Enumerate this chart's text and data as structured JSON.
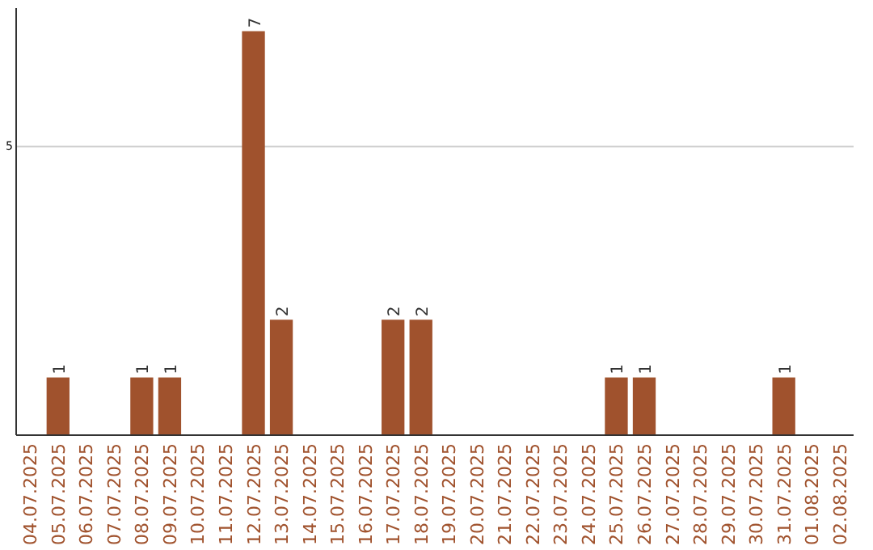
{
  "chart_data": {
    "type": "bar",
    "categories": [
      "04.07.2025",
      "05.07.2025",
      "06.07.2025",
      "07.07.2025",
      "08.07.2025",
      "09.07.2025",
      "10.07.2025",
      "11.07.2025",
      "12.07.2025",
      "13.07.2025",
      "14.07.2025",
      "15.07.2025",
      "16.07.2025",
      "17.07.2025",
      "18.07.2025",
      "19.07.2025",
      "20.07.2025",
      "21.07.2025",
      "22.07.2025",
      "23.07.2025",
      "24.07.2025",
      "25.07.2025",
      "26.07.2025",
      "27.07.2025",
      "28.07.2025",
      "29.07.2025",
      "30.07.2025",
      "31.07.2025",
      "01.08.2025",
      "02.08.2025"
    ],
    "values": [
      0,
      1,
      0,
      0,
      1,
      1,
      0,
      0,
      7,
      2,
      0,
      0,
      0,
      2,
      2,
      0,
      0,
      0,
      0,
      0,
      0,
      1,
      1,
      0,
      0,
      0,
      0,
      1,
      0,
      0
    ],
    "color": "#a0522d",
    "ylim": [
      0,
      7.4
    ],
    "yticks": [
      5
    ],
    "grid": "y",
    "value_labels": [
      null,
      "1",
      null,
      null,
      "1",
      "1",
      null,
      null,
      "7",
      "2",
      null,
      null,
      null,
      "2",
      "2",
      null,
      null,
      null,
      null,
      null,
      null,
      "1",
      "1",
      null,
      null,
      null,
      null,
      "1",
      null,
      null
    ]
  }
}
